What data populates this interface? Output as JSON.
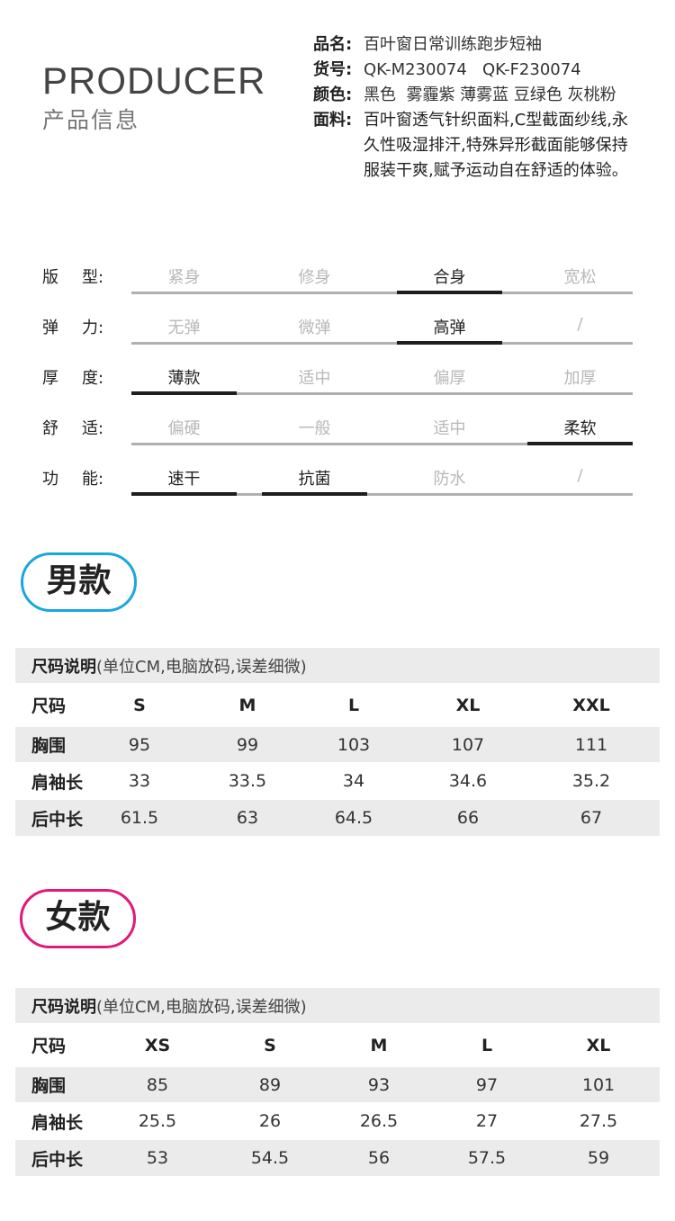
{
  "header": {
    "title_en": "PRODUCER",
    "title_cn": "产品信息"
  },
  "info": [
    {
      "label": "品名:",
      "value": "百叶窗日常训练跑步短袖"
    },
    {
      "label": "货号:",
      "value": "QK-M230074   QK-F230074"
    },
    {
      "label": "颜色:",
      "value": "黑色  雾霾紫 薄雾蓝 豆绿色 灰桃粉"
    },
    {
      "label": "面料:",
      "value": "百叶窗透气针织面料,C型截面纱线,永久性吸湿排汗,特殊异形截面能够保持服装干爽,赋予运动自在舒适的体验。"
    }
  ],
  "attributes": [
    {
      "label_a": "版",
      "label_b": "型:",
      "options": [
        "紧身",
        "修身",
        "合身",
        "宽松"
      ],
      "selected": [
        2
      ]
    },
    {
      "label_a": "弹",
      "label_b": "力:",
      "options": [
        "无弹",
        "微弹",
        "高弹",
        "/"
      ],
      "selected": [
        2
      ]
    },
    {
      "label_a": "厚",
      "label_b": "度:",
      "options": [
        "薄款",
        "适中",
        "偏厚",
        "加厚"
      ],
      "selected": [
        0
      ]
    },
    {
      "label_a": "舒",
      "label_b": "适:",
      "options": [
        "偏硬",
        "一般",
        "适中",
        "柔软"
      ],
      "selected": [
        3
      ]
    },
    {
      "label_a": "功",
      "label_b": "能:",
      "options": [
        "速干",
        "抗菌",
        "防水",
        "/"
      ],
      "selected": [
        0,
        1
      ]
    }
  ],
  "men": {
    "badge": "男款",
    "color": "#1aa6e0",
    "caption_bold": "尺码说明",
    "caption": "(单位CM,电脑放码,误差细微)",
    "header": [
      "尺码",
      "S",
      "M",
      "L",
      "XL",
      "XXL"
    ],
    "rows": [
      [
        "胸围",
        "95",
        "99",
        "103",
        "107",
        "111"
      ],
      [
        "肩袖长",
        "33",
        "33.5",
        "34",
        "34.6",
        "35.2"
      ],
      [
        "后中长",
        "61.5",
        "63",
        "64.5",
        "66",
        "67"
      ]
    ]
  },
  "women": {
    "badge": "女款",
    "color": "#e0197a",
    "caption_bold": "尺码说明",
    "caption": "(单位CM,电脑放码,误差细微)",
    "header": [
      "尺码",
      "XS",
      "S",
      "M",
      "L",
      "XL"
    ],
    "rows": [
      [
        "胸围",
        "85",
        "89",
        "93",
        "97",
        "101"
      ],
      [
        "肩袖长",
        "25.5",
        "26",
        "26.5",
        "27",
        "27.5"
      ],
      [
        "后中长",
        "53",
        "54.5",
        "56",
        "57.5",
        "59"
      ]
    ]
  }
}
